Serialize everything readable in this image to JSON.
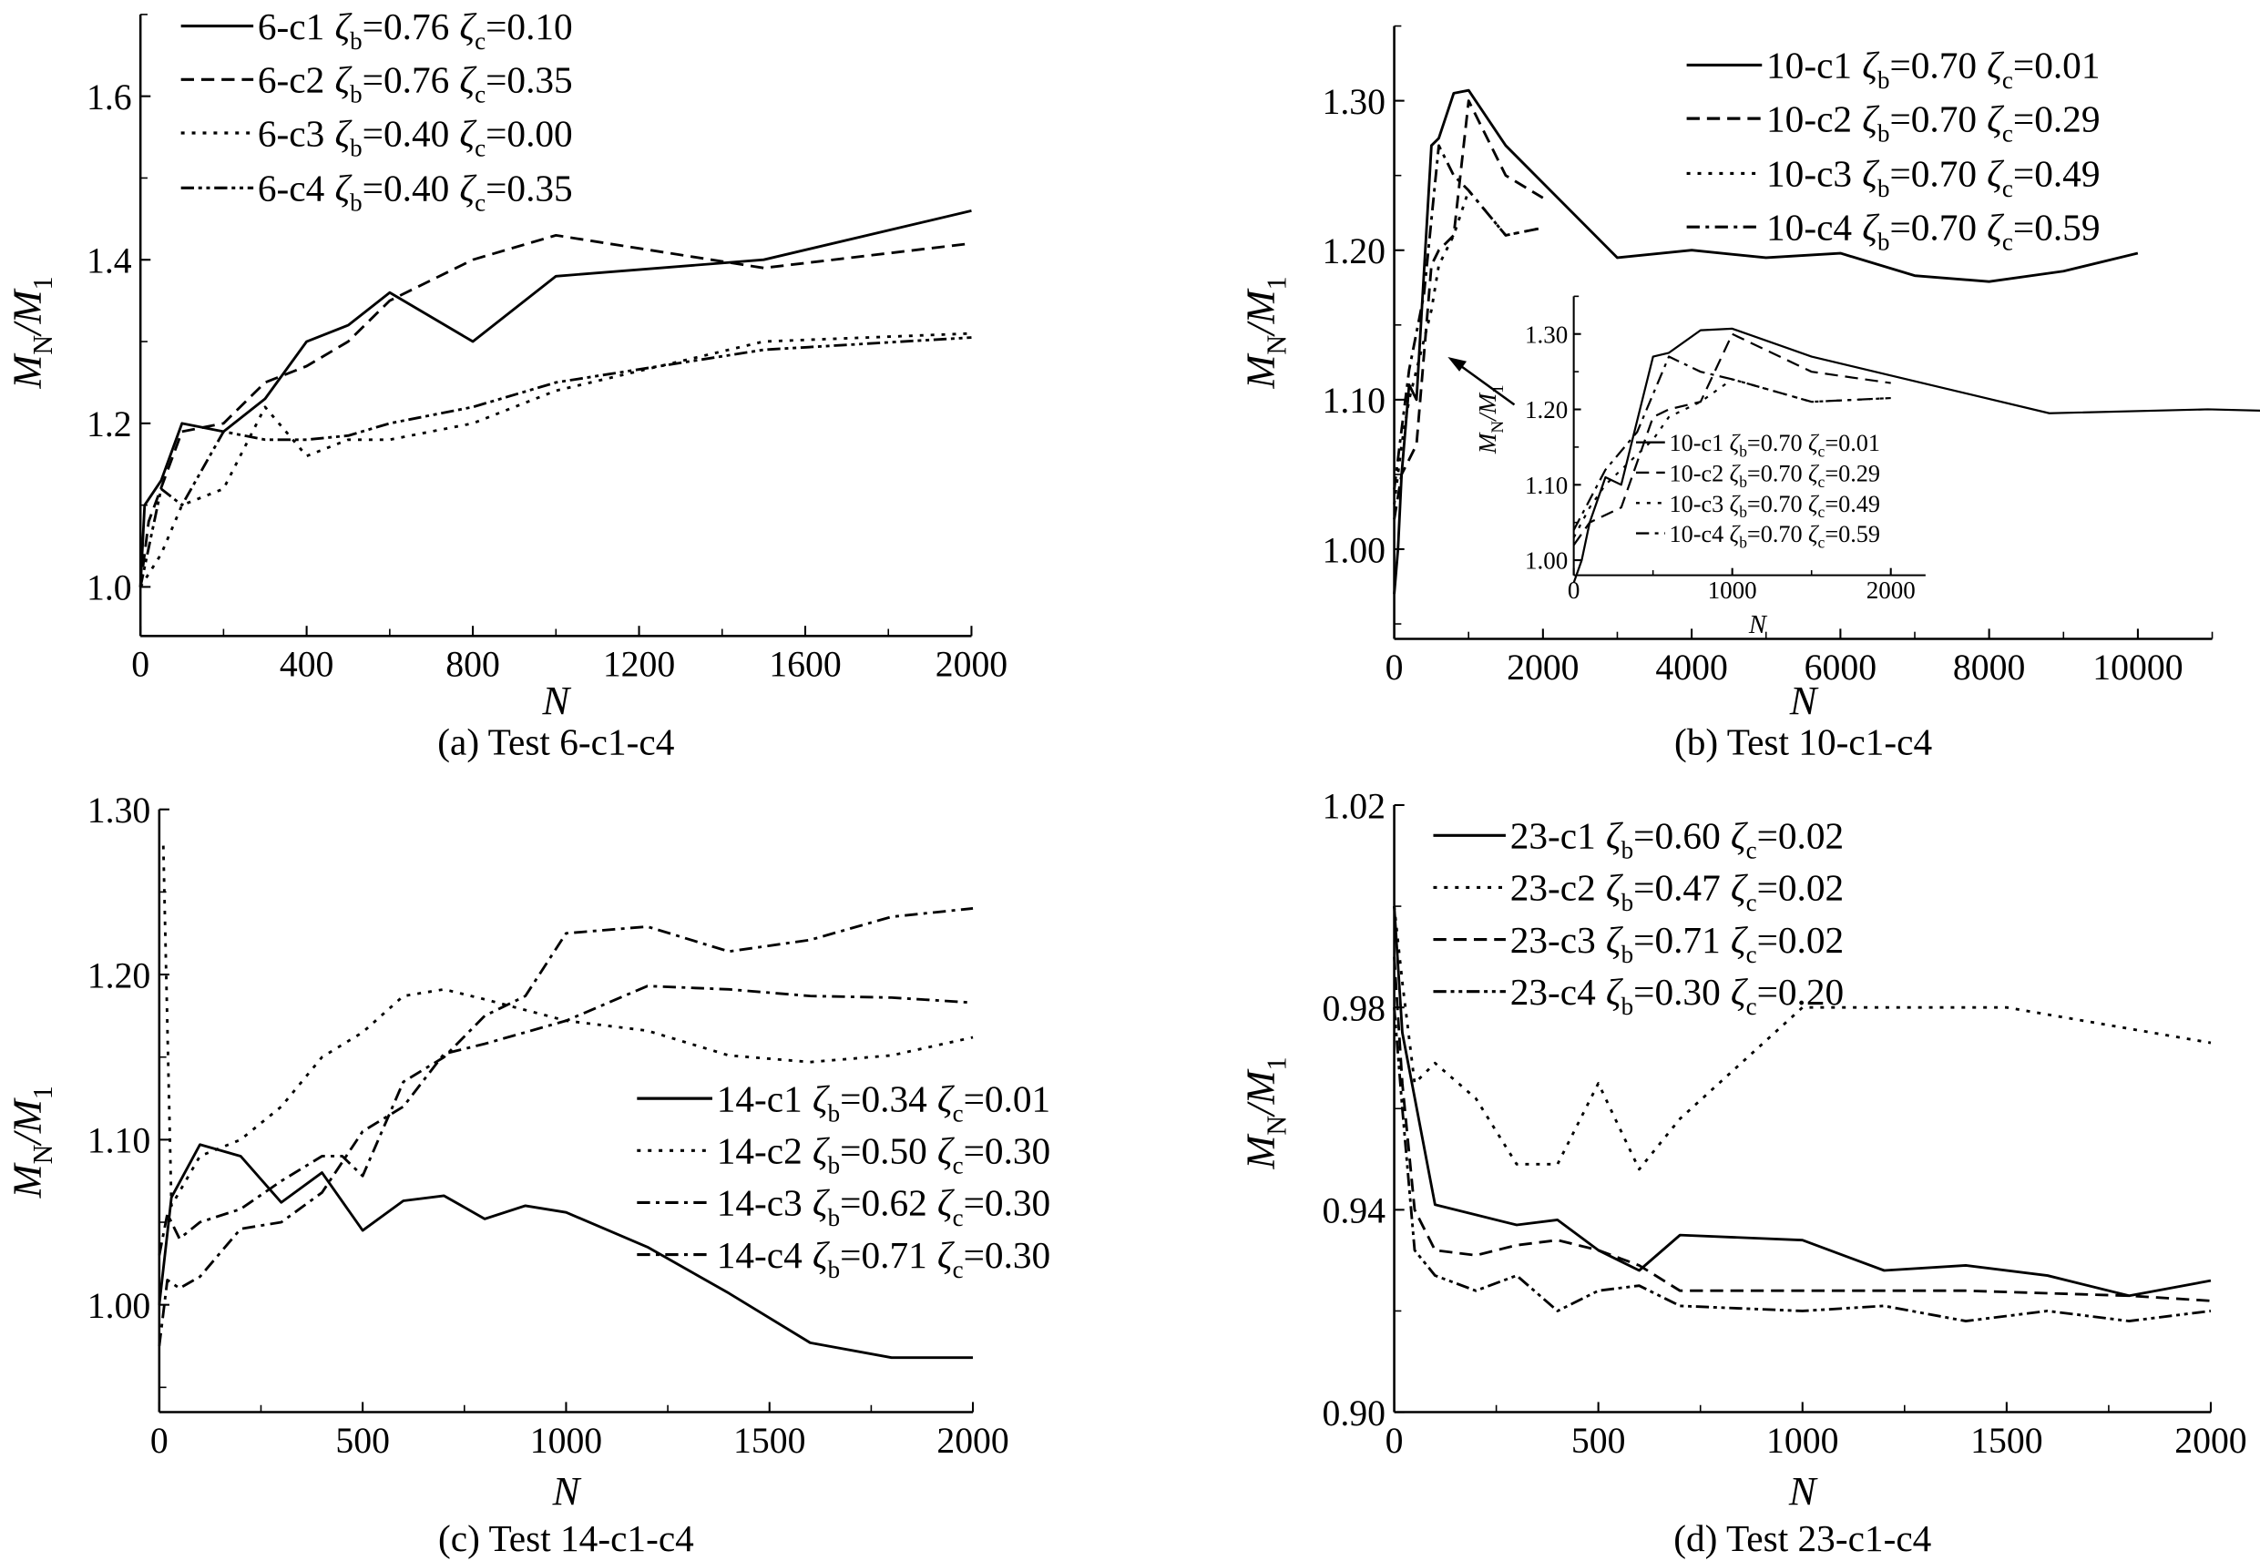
{
  "zeta_symbol": "ζ",
  "sub_b": "b",
  "sub_c": "c",
  "ylabel": {
    "main": "M",
    "sub1": "N",
    "slash": "/",
    "main2": "M",
    "sub2": "1"
  },
  "chart_data": [
    {
      "type": "line",
      "caption": "(a) Test 6-c1-c4",
      "xlabel": "N",
      "xlim": [
        0,
        2000
      ],
      "ylim": [
        0.94,
        1.7
      ],
      "xticks": [
        "0",
        "400",
        "800",
        "1200",
        "1600",
        "2000"
      ],
      "yticks": [
        "1.0",
        "1.2",
        "1.4",
        "1.6"
      ],
      "grid": false,
      "legend": "top-left",
      "series": [
        {
          "name": "6-c1",
          "zeta_b": "=0.76",
          "zeta_c": "=0.10",
          "style": "solid",
          "x": [
            0,
            10,
            50,
            100,
            200,
            300,
            400,
            500,
            600,
            800,
            1000,
            1500,
            2000
          ],
          "y": [
            1.0,
            1.1,
            1.13,
            1.2,
            1.19,
            1.23,
            1.3,
            1.32,
            1.36,
            1.3,
            1.38,
            1.4,
            1.46
          ]
        },
        {
          "name": "6-c2",
          "zeta_b": "=0.76",
          "zeta_c": "=0.35",
          "style": "dashed",
          "x": [
            0,
            20,
            100,
            200,
            300,
            400,
            500,
            600,
            800,
            1000,
            1500,
            2000
          ],
          "y": [
            1.0,
            1.08,
            1.19,
            1.2,
            1.25,
            1.27,
            1.3,
            1.35,
            1.4,
            1.43,
            1.39,
            1.42
          ]
        },
        {
          "name": "6-c3",
          "zeta_b": "=0.40",
          "zeta_c": "=0.00",
          "style": "dotted",
          "x": [
            0,
            50,
            100,
            200,
            300,
            400,
            500,
            600,
            800,
            1000,
            1500,
            2000
          ],
          "y": [
            1.0,
            1.04,
            1.1,
            1.12,
            1.22,
            1.16,
            1.18,
            1.18,
            1.2,
            1.24,
            1.3,
            1.31
          ]
        },
        {
          "name": "6-c4",
          "zeta_b": "=0.40",
          "zeta_c": "=0.35",
          "style": "dash-dot-dot",
          "x": [
            0,
            50,
            100,
            200,
            300,
            400,
            500,
            600,
            800,
            1000,
            1500,
            2000
          ],
          "y": [
            1.0,
            1.12,
            1.1,
            1.19,
            1.18,
            1.18,
            1.185,
            1.2,
            1.22,
            1.25,
            1.29,
            1.305
          ]
        }
      ]
    },
    {
      "type": "line",
      "caption": "(b) Test 10-c1-c4",
      "xlabel": "N",
      "xlim": [
        0,
        11000
      ],
      "ylim": [
        0.94,
        1.35
      ],
      "xticks": [
        "0",
        "2000",
        "4000",
        "6000",
        "8000",
        "10000"
      ],
      "yticks": [
        "1.00",
        "1.10",
        "1.20",
        "1.30"
      ],
      "grid": false,
      "legend": "top-right",
      "series": [
        {
          "name": "10-c1",
          "zeta_b": "=0.70",
          "zeta_c": "=0.01",
          "style": "solid",
          "x": [
            0,
            50,
            100,
            200,
            300,
            500,
            600,
            800,
            1000,
            1500,
            2000,
            3000,
            4000,
            5000,
            6000,
            7000,
            8000,
            9000,
            10000
          ],
          "y": [
            0.97,
            1.0,
            1.05,
            1.11,
            1.1,
            1.27,
            1.275,
            1.305,
            1.307,
            1.27,
            1.245,
            1.195,
            1.2,
            1.195,
            1.198,
            1.183,
            1.179,
            1.186,
            1.198
          ]
        },
        {
          "name": "10-c2",
          "zeta_b": "=0.70",
          "zeta_c": "=0.29",
          "style": "dashed",
          "x": [
            0,
            100,
            200,
            300,
            500,
            600,
            800,
            1000,
            1500,
            2000
          ],
          "y": [
            1.02,
            1.05,
            1.06,
            1.07,
            1.19,
            1.2,
            1.21,
            1.3,
            1.25,
            1.235
          ]
        },
        {
          "name": "10-c3",
          "zeta_b": "=0.70",
          "zeta_c": "=0.49",
          "style": "dotted",
          "x": [
            0,
            100,
            200,
            300,
            500,
            600,
            800,
            1000,
            1500,
            2000
          ],
          "y": [
            1.03,
            1.07,
            1.1,
            1.12,
            1.16,
            1.19,
            1.21,
            1.24,
            1.21,
            1.215
          ]
        },
        {
          "name": "10-c4",
          "zeta_b": "=0.70",
          "zeta_c": "=0.59",
          "style": "dash-dot",
          "x": [
            0,
            100,
            200,
            400,
            600,
            800,
            1000,
            1500,
            2000
          ],
          "y": [
            1.04,
            1.08,
            1.12,
            1.17,
            1.27,
            1.25,
            1.24,
            1.21,
            1.215
          ]
        }
      ],
      "inset": {
        "xlabel": "N",
        "xlim": [
          0,
          2200
        ],
        "ylim": [
          0.98,
          1.35
        ],
        "xticks": [
          "0",
          "1000",
          "2000"
        ],
        "yticks": [
          "1.00",
          "1.10",
          "1.20",
          "1.30"
        ]
      }
    },
    {
      "type": "line",
      "caption": "(c) Test 14-c1-c4",
      "xlabel": "N",
      "xlim": [
        0,
        2000
      ],
      "ylim": [
        0.935,
        1.3
      ],
      "xticks": [
        "0",
        "500",
        "1000",
        "1500",
        "2000"
      ],
      "yticks": [
        "1.00",
        "1.10",
        "1.20",
        "1.30"
      ],
      "grid": false,
      "legend": "center-right",
      "series": [
        {
          "name": "14-c1",
          "zeta_b": "=0.34",
          "zeta_c": "=0.01",
          "style": "solid",
          "x": [
            0,
            30,
            100,
            200,
            300,
            400,
            500,
            600,
            700,
            800,
            900,
            1000,
            1200,
            1400,
            1600,
            1800,
            2000
          ],
          "y": [
            1.0,
            1.065,
            1.097,
            1.09,
            1.062,
            1.08,
            1.045,
            1.063,
            1.066,
            1.052,
            1.06,
            1.056,
            1.035,
            1.007,
            0.977,
            0.968,
            0.968
          ]
        },
        {
          "name": "14-c2",
          "zeta_b": "=0.50",
          "zeta_c": "=0.30",
          "style": "dotted",
          "x": [
            10,
            30,
            100,
            200,
            300,
            400,
            500,
            600,
            700,
            800,
            1000,
            1200,
            1400,
            1600,
            1800,
            2000
          ],
          "y": [
            1.278,
            1.06,
            1.09,
            1.1,
            1.12,
            1.15,
            1.165,
            1.187,
            1.191,
            1.185,
            1.172,
            1.166,
            1.151,
            1.147,
            1.151,
            1.162
          ]
        },
        {
          "name": "14-c3",
          "zeta_b": "=0.62",
          "zeta_c": "=0.30",
          "style": "dash-dot",
          "x": [
            0,
            20,
            50,
            100,
            200,
            300,
            400,
            450,
            500,
            600,
            700,
            800,
            900,
            1000,
            1200,
            1400,
            1600,
            1800,
            2000
          ],
          "y": [
            1.03,
            1.055,
            1.04,
            1.05,
            1.058,
            1.075,
            1.09,
            1.09,
            1.078,
            1.135,
            1.15,
            1.175,
            1.187,
            1.225,
            1.229,
            1.214,
            1.221,
            1.235,
            1.24
          ]
        },
        {
          "name": "14-c4",
          "zeta_b": "=0.71",
          "zeta_c": "=0.30",
          "style": "dash-dot",
          "x": [
            0,
            20,
            50,
            100,
            200,
            300,
            400,
            500,
            600,
            700,
            800,
            1000,
            1200,
            1400,
            1600,
            1800,
            2000
          ],
          "y": [
            0.975,
            1.015,
            1.01,
            1.017,
            1.046,
            1.05,
            1.068,
            1.105,
            1.12,
            1.152,
            1.158,
            1.172,
            1.193,
            1.191,
            1.187,
            1.186,
            1.183
          ]
        }
      ]
    },
    {
      "type": "line",
      "caption": "(d) Test 23-c1-c4",
      "xlabel": "N",
      "xlim": [
        0,
        2000
      ],
      "ylim": [
        0.9,
        1.02
      ],
      "xticks": [
        "0",
        "500",
        "1000",
        "1500",
        "2000"
      ],
      "yticks": [
        "0.90",
        "0.94",
        "0.98",
        "1.02"
      ],
      "grid": false,
      "legend": "top-left",
      "series": [
        {
          "name": "23-c1",
          "zeta_b": "=0.60",
          "zeta_c": "=0.02",
          "style": "solid",
          "x": [
            0,
            20,
            100,
            200,
            300,
            400,
            500,
            600,
            700,
            1000,
            1200,
            1400,
            1600,
            1800,
            2000
          ],
          "y": [
            1.0,
            0.975,
            0.941,
            0.939,
            0.937,
            0.938,
            0.932,
            0.928,
            0.935,
            0.934,
            0.928,
            0.929,
            0.927,
            0.923,
            0.926
          ]
        },
        {
          "name": "23-c2",
          "zeta_b": "=0.47",
          "zeta_c": "=0.02",
          "style": "dotted",
          "x": [
            0,
            20,
            50,
            100,
            200,
            300,
            400,
            500,
            600,
            700,
            1000,
            1500,
            2000
          ],
          "y": [
            1.0,
            0.985,
            0.965,
            0.969,
            0.962,
            0.949,
            0.949,
            0.965,
            0.948,
            0.958,
            0.98,
            0.98,
            0.973
          ]
        },
        {
          "name": "23-c3",
          "zeta_b": "=0.71",
          "zeta_c": "=0.02",
          "style": "dashed",
          "x": [
            0,
            20,
            50,
            100,
            200,
            300,
            400,
            500,
            600,
            700,
            1000,
            1400,
            1800,
            2000
          ],
          "y": [
            0.99,
            0.965,
            0.94,
            0.932,
            0.931,
            0.933,
            0.934,
            0.932,
            0.929,
            0.924,
            0.924,
            0.924,
            0.923,
            0.922
          ]
        },
        {
          "name": "23-c4",
          "zeta_b": "=0.30",
          "zeta_c": "=0.20",
          "style": "dash-dot-dot",
          "x": [
            0,
            20,
            50,
            100,
            200,
            300,
            400,
            500,
            600,
            700,
            1000,
            1200,
            1400,
            1600,
            1800,
            2000
          ],
          "y": [
            0.98,
            0.96,
            0.932,
            0.927,
            0.924,
            0.927,
            0.92,
            0.924,
            0.925,
            0.921,
            0.92,
            0.921,
            0.918,
            0.92,
            0.918,
            0.92
          ]
        }
      ]
    }
  ]
}
